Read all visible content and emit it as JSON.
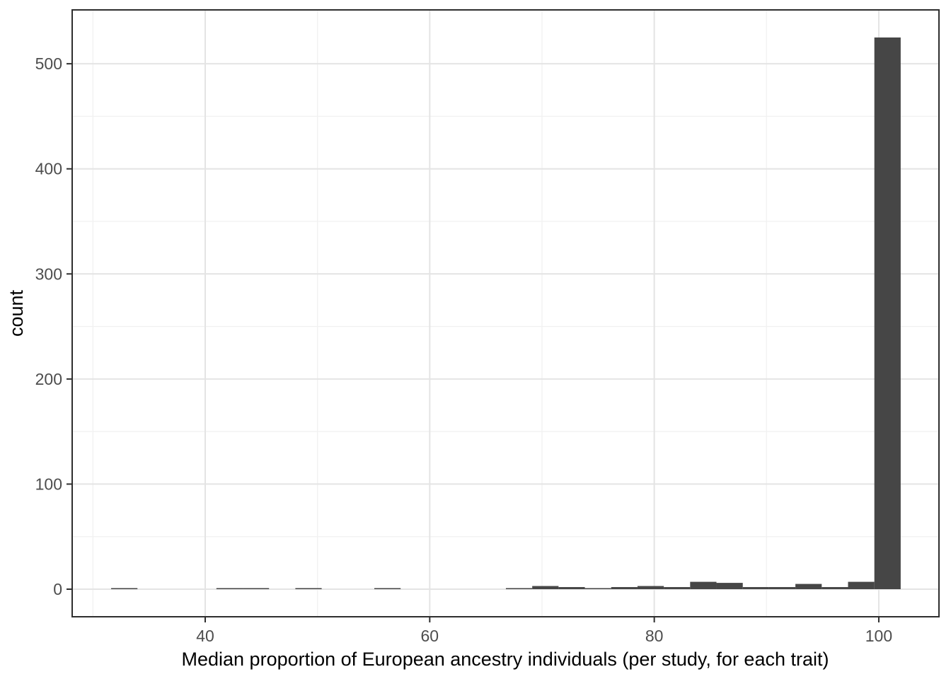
{
  "figure": {
    "background": "#ffffff"
  },
  "chart_data": {
    "type": "bar",
    "subtype": "histogram",
    "title": "",
    "xlabel": "Median proportion of European ancestry individuals (per study, for each trait)",
    "ylabel": "count",
    "bin_start": 31.62,
    "bin_width": 2.3443,
    "counts": [
      1,
      0,
      0,
      0,
      1,
      1,
      0,
      1,
      0,
      0,
      1,
      0,
      0,
      0,
      0,
      1,
      3,
      2,
      1,
      2,
      3,
      2,
      7,
      6,
      2,
      2,
      5,
      2,
      7,
      525
    ],
    "max_count": 525,
    "x_ticks": [
      40,
      60,
      80,
      100
    ],
    "y_ticks": [
      0,
      100,
      200,
      300,
      400,
      500
    ],
    "x_minor_ticks": [
      30,
      50,
      70,
      90
    ],
    "y_minor_ticks": [
      50,
      150,
      250,
      350,
      450
    ],
    "xlim": [
      28.15,
      105.36
    ],
    "ylim": [
      -26.25,
      551.25
    ],
    "grid": true,
    "legend": false,
    "colors": {
      "bar_fill": "#464646",
      "panel_background": "#ffffff",
      "panel_border": "#2e2e2e",
      "grid_major": "#e4e4e4",
      "grid_minor": "#f1f1f1",
      "tick_mark": "#2e2e2e",
      "tick_label": "#4d4d4d",
      "axis_title": "#000000"
    }
  }
}
